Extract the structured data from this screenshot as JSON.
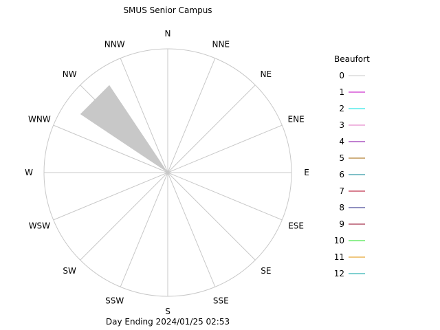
{
  "chart_data": {
    "type": "windrose",
    "title": "SMUS Senior Campus",
    "footer": "Day Ending 2024/01/25 02:53",
    "directions": [
      "N",
      "NNE",
      "NE",
      "ENE",
      "E",
      "ESE",
      "SE",
      "SSE",
      "S",
      "SSW",
      "SW",
      "WSW",
      "W",
      "WNW",
      "NW",
      "NNW"
    ],
    "series": [
      {
        "name": "0",
        "color": "#c8c8c8",
        "values": [
          0,
          0,
          0,
          0,
          0,
          0,
          0,
          0,
          0,
          0,
          0,
          0,
          0,
          0,
          0.85,
          0
        ]
      }
    ],
    "legend": {
      "title": "Beaufort",
      "placement": "right",
      "entries": [
        {
          "label": "0",
          "color": "#c8c8c8"
        },
        {
          "label": "1",
          "color": "#c000c0"
        },
        {
          "label": "2",
          "color": "#00e0e0"
        },
        {
          "label": "3",
          "color": "#e070c0"
        },
        {
          "label": "4",
          "color": "#8000a0"
        },
        {
          "label": "5",
          "color": "#a06000"
        },
        {
          "label": "6",
          "color": "#008090"
        },
        {
          "label": "7",
          "color": "#b00020"
        },
        {
          "label": "8",
          "color": "#202080"
        },
        {
          "label": "9",
          "color": "#900020"
        },
        {
          "label": "10",
          "color": "#20e020"
        },
        {
          "label": "11",
          "color": "#e09000"
        },
        {
          "label": "12",
          "color": "#00a0a0"
        }
      ]
    },
    "grid": true
  }
}
